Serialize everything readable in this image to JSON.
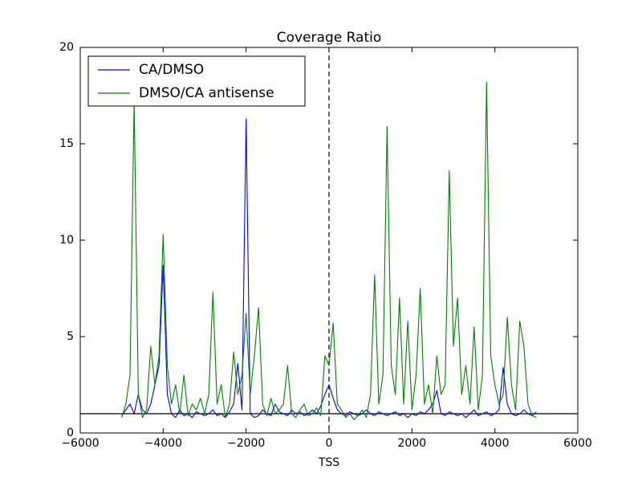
{
  "chart_data": {
    "type": "line",
    "title": "Coverage Ratio",
    "x_label": "TSS",
    "x": [
      -5000,
      -4900,
      -4800,
      -4700,
      -4600,
      -4500,
      -4400,
      -4300,
      -4200,
      -4100,
      -4000,
      -3900,
      -3800,
      -3700,
      -3600,
      -3500,
      -3400,
      -3300,
      -3200,
      -3100,
      -3000,
      -2900,
      -2800,
      -2700,
      -2600,
      -2500,
      -2400,
      -2300,
      -2200,
      -2100,
      -2000,
      -1900,
      -1800,
      -1700,
      -1600,
      -1500,
      -1400,
      -1300,
      -1200,
      -1100,
      -1000,
      -900,
      -800,
      -700,
      -600,
      -500,
      -400,
      -300,
      -200,
      -100,
      0,
      100,
      200,
      300,
      400,
      500,
      600,
      700,
      800,
      900,
      1000,
      1100,
      1200,
      1300,
      1400,
      1500,
      1600,
      1700,
      1800,
      1900,
      2000,
      2100,
      2200,
      2300,
      2400,
      2500,
      2600,
      2700,
      2800,
      2900,
      3000,
      3100,
      3200,
      3300,
      3400,
      3500,
      3600,
      3700,
      3800,
      3900,
      4000,
      4100,
      4200,
      4300,
      4400,
      4500,
      4600,
      4700,
      4800,
      4900,
      5000
    ],
    "series": [
      {
        "name": "CA/DMSO",
        "color": "#0000ff",
        "values": [
          0.9,
          1.2,
          1.5,
          1.0,
          2.0,
          1.2,
          1.0,
          1.5,
          2.5,
          3.5,
          8.7,
          2.0,
          1.0,
          0.8,
          1.2,
          0.9,
          1.0,
          0.8,
          1.1,
          1.0,
          0.9,
          1.0,
          1.2,
          0.9,
          1.0,
          0.8,
          1.1,
          1.5,
          3.6,
          1.2,
          16.3,
          1.0,
          0.8,
          0.9,
          1.2,
          1.0,
          0.9,
          1.5,
          1.1,
          1.0,
          0.9,
          1.2,
          1.0,
          1.1,
          0.9,
          1.0,
          1.2,
          1.0,
          1.4,
          2.0,
          2.5,
          1.8,
          1.2,
          1.0,
          0.9,
          1.1,
          1.0,
          0.9,
          1.0,
          1.2,
          1.0,
          0.9,
          1.1,
          1.0,
          0.9,
          1.0,
          1.1,
          0.9,
          1.0,
          0.8,
          1.0,
          0.9,
          1.1,
          1.0,
          1.2,
          1.5,
          2.2,
          1.0,
          0.9,
          1.1,
          1.0,
          0.9,
          1.0,
          0.8,
          1.0,
          1.2,
          0.9,
          1.0,
          1.1,
          0.9,
          1.0,
          1.2,
          3.4,
          1.5,
          1.0,
          0.9,
          1.0,
          1.2,
          1.0,
          0.9,
          1.1
        ]
      },
      {
        "name": "DMSO/CA antisense",
        "color": "#008000",
        "values": [
          0.8,
          1.5,
          3.0,
          17.3,
          2.0,
          0.8,
          1.2,
          4.5,
          2.5,
          4.0,
          10.3,
          3.5,
          1.5,
          2.5,
          1.0,
          3.0,
          0.9,
          1.5,
          1.2,
          1.8,
          1.0,
          2.0,
          7.3,
          1.5,
          2.5,
          0.8,
          1.5,
          4.2,
          2.0,
          3.0,
          6.2,
          2.0,
          4.0,
          6.5,
          1.5,
          0.9,
          1.8,
          1.0,
          1.2,
          1.5,
          3.5,
          1.0,
          0.8,
          1.2,
          1.5,
          0.9,
          1.0,
          1.3,
          0.9,
          4.0,
          3.5,
          5.7,
          1.5,
          1.2,
          0.8,
          1.0,
          0.7,
          0.9,
          1.2,
          0.8,
          2.0,
          8.2,
          1.5,
          3.0,
          15.9,
          3.5,
          2.0,
          7.0,
          1.5,
          5.8,
          1.2,
          3.0,
          7.5,
          1.5,
          2.5,
          1.0,
          4.0,
          2.0,
          2.5,
          13.6,
          4.5,
          7.0,
          2.0,
          3.5,
          1.5,
          5.5,
          1.2,
          3.0,
          18.2,
          4.0,
          2.5,
          1.5,
          2.0,
          6.0,
          2.5,
          1.2,
          5.8,
          4.5,
          1.5,
          0.9,
          0.8
        ]
      }
    ],
    "xlim": [
      -6000,
      6000
    ],
    "xticks": [
      {
        "value": -6000,
        "label": "−6000"
      },
      {
        "value": -4000,
        "label": "−4000"
      },
      {
        "value": -2000,
        "label": "−2000"
      },
      0,
      2000,
      4000,
      6000
    ],
    "ylim": [
      0,
      20
    ],
    "yticks": [
      0,
      5,
      10,
      15,
      20
    ],
    "vline": 0,
    "hline": 1,
    "legend": "upper-left"
  }
}
